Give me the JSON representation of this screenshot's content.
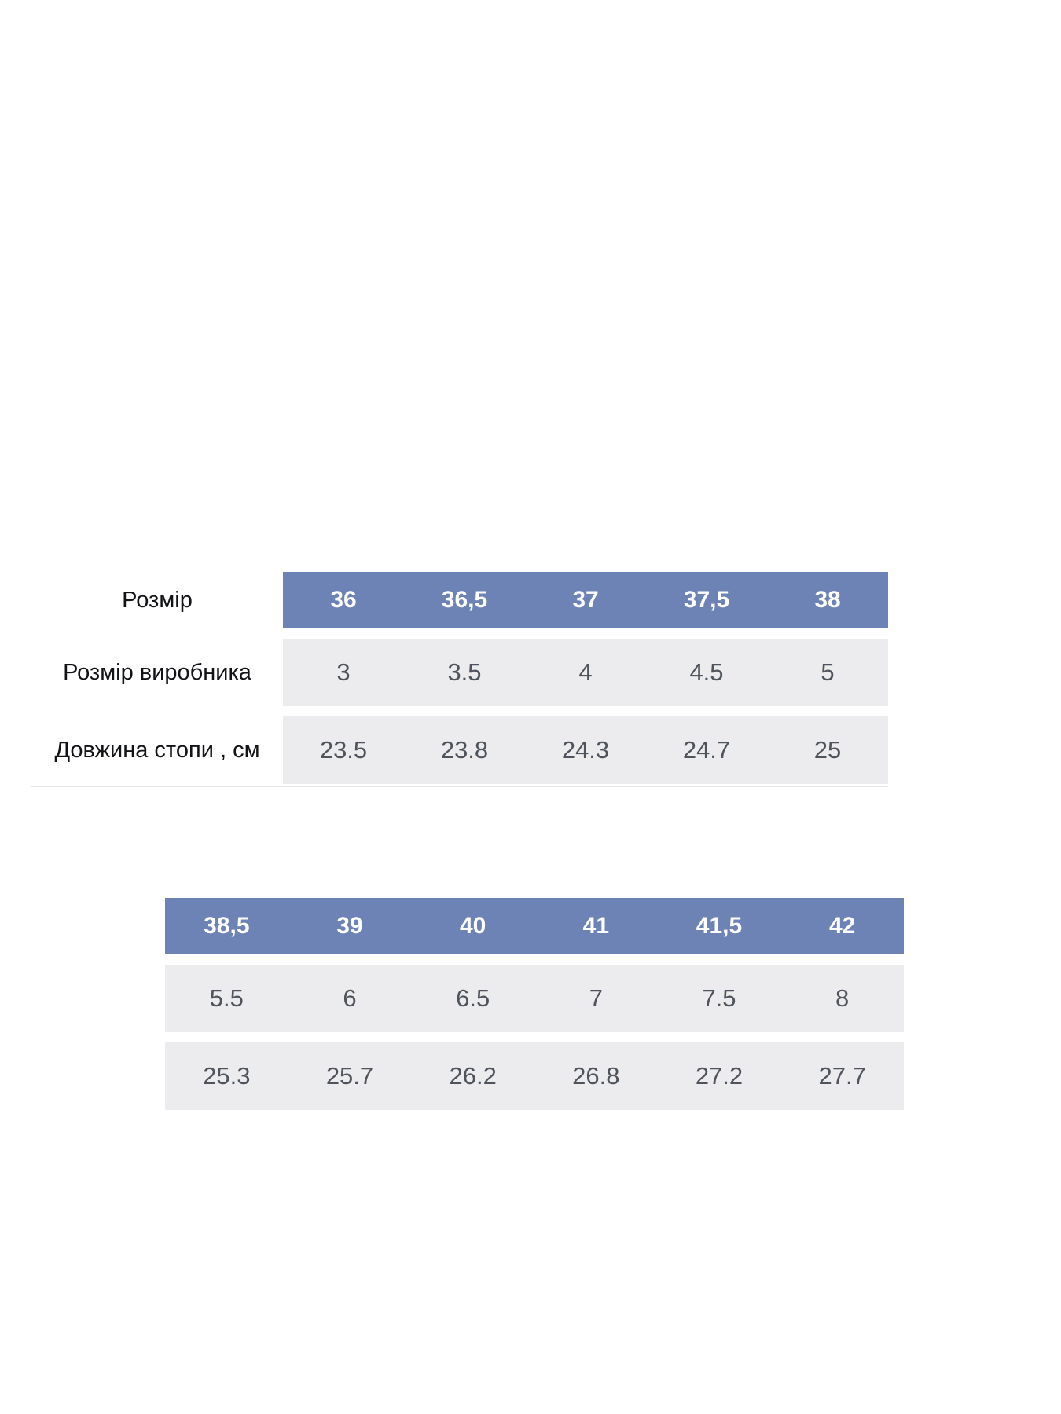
{
  "colors": {
    "header_bg": "#6d83b5",
    "header_text": "#ffffff",
    "row_bg": "#ececee",
    "cell_text": "#4f545c",
    "label_text": "#121316"
  },
  "table1": {
    "row_labels": [
      "Розмір",
      "Розмір виробника",
      "Довжина стопи , см"
    ],
    "sizes": [
      "36",
      "36,5",
      "37",
      "37,5",
      "38"
    ],
    "manufacturer_sizes": [
      "3",
      "3.5",
      "4",
      "4.5",
      "5"
    ],
    "foot_lengths": [
      "23.5",
      "23.8",
      "24.3",
      "24.7",
      "25"
    ]
  },
  "table2": {
    "sizes": [
      "38,5",
      "39",
      "40",
      "41",
      "41,5",
      "42"
    ],
    "manufacturer_sizes": [
      "5.5",
      "6",
      "6.5",
      "7",
      "7.5",
      "8"
    ],
    "foot_lengths": [
      "25.3",
      "25.7",
      "26.2",
      "26.8",
      "27.2",
      "27.7"
    ]
  },
  "chart_data": {
    "type": "table",
    "columns": [
      "Розмір",
      "Розмір виробника",
      "Довжина стопи , см"
    ],
    "rows": [
      [
        "36",
        "3",
        "23.5"
      ],
      [
        "36,5",
        "3.5",
        "23.8"
      ],
      [
        "37",
        "4",
        "24.3"
      ],
      [
        "37,5",
        "4.5",
        "24.7"
      ],
      [
        "38",
        "5",
        "25"
      ],
      [
        "38,5",
        "5.5",
        "25.3"
      ],
      [
        "39",
        "6",
        "25.7"
      ],
      [
        "40",
        "6.5",
        "26.2"
      ],
      [
        "41",
        "7",
        "26.8"
      ],
      [
        "41,5",
        "7.5",
        "27.2"
      ],
      [
        "42",
        "8",
        "27.7"
      ]
    ]
  }
}
